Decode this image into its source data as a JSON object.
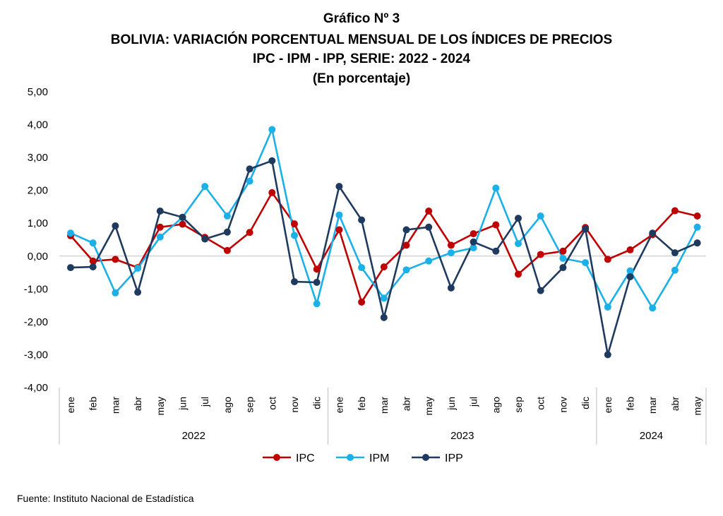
{
  "chart_data": {
    "type": "line",
    "title": [
      "Gráfico Nº 3",
      "BOLIVIA: VARIACIÓN PORCENTUAL MENSUAL DE LOS ÍNDICES DE PRECIOS",
      "IPC - IPM - IPP, SERIE: 2022 - 2024",
      "(En porcentaje)"
    ],
    "ylim": [
      -4,
      5
    ],
    "yticks": [
      "5,00",
      "4,00",
      "3,00",
      "2,00",
      "1,00",
      "0,00",
      "-1,00",
      "-2,00",
      "-3,00",
      "-4,00"
    ],
    "categories": [
      "ene",
      "feb",
      "mar",
      "abr",
      "may",
      "jun",
      "jul",
      "ago",
      "sep",
      "oct",
      "nov",
      "dic",
      "ene",
      "feb",
      "mar",
      "abr",
      "may",
      "jun",
      "jul",
      "ago",
      "sep",
      "oct",
      "nov",
      "dic",
      "ene",
      "feb",
      "mar",
      "abr",
      "may"
    ],
    "years": [
      {
        "label": "2022",
        "count": 12
      },
      {
        "label": "2023",
        "count": 12
      },
      {
        "label": "2024",
        "count": 5
      }
    ],
    "legend_position": "bottom",
    "series": [
      {
        "name": "IPC",
        "color": "#c00000",
        "values": [
          0.62,
          -0.15,
          -0.1,
          -0.35,
          0.88,
          0.97,
          0.57,
          0.17,
          0.72,
          1.93,
          0.98,
          -0.4,
          0.8,
          -1.4,
          -0.33,
          0.33,
          1.37,
          0.33,
          0.68,
          0.95,
          -0.55,
          0.05,
          0.15,
          0.87,
          -0.1,
          0.19,
          0.65,
          1.38,
          1.22
        ]
      },
      {
        "name": "IPM",
        "color": "#1ab0e8",
        "values": [
          0.7,
          0.4,
          -1.12,
          -0.37,
          0.58,
          1.18,
          2.12,
          1.22,
          2.28,
          3.85,
          0.63,
          -1.45,
          1.25,
          -0.35,
          -1.28,
          -0.42,
          -0.15,
          0.1,
          0.25,
          2.07,
          0.38,
          1.22,
          -0.07,
          -0.2,
          -1.55,
          -0.45,
          -1.58,
          -0.43,
          0.88
        ]
      },
      {
        "name": "IPP",
        "color": "#1f3a5f",
        "values": [
          -0.35,
          -0.33,
          0.92,
          -1.1,
          1.37,
          1.18,
          0.52,
          0.73,
          2.65,
          2.9,
          -0.78,
          -0.8,
          2.12,
          1.1,
          -1.87,
          0.8,
          0.88,
          -0.97,
          0.43,
          0.15,
          1.15,
          -1.05,
          -0.35,
          0.82,
          -3.0,
          -0.63,
          0.7,
          0.1,
          0.4
        ]
      }
    ]
  },
  "source": "Fuente: Instituto Nacional de Estadística"
}
